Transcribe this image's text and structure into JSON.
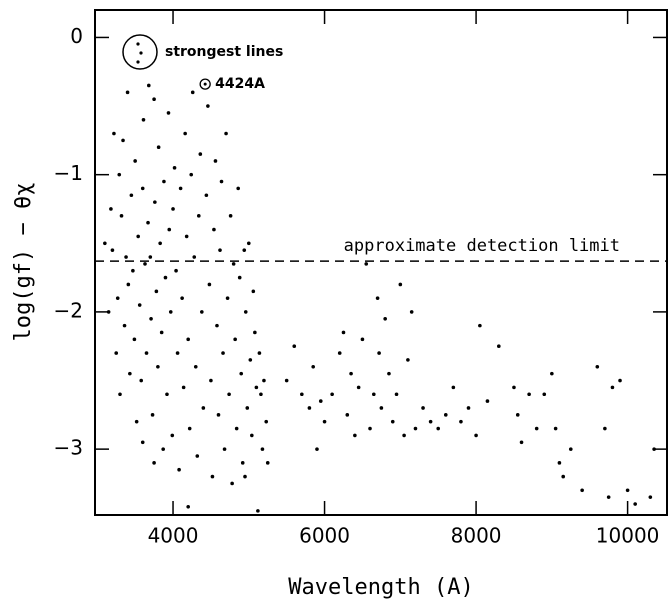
{
  "chart_data": {
    "type": "scatter",
    "xlabel": "Wavelength (A)",
    "ylabel": "log(gf) − θχ",
    "xlim": [
      2970,
      10520
    ],
    "ylim": [
      -3.48,
      0.2
    ],
    "xticks": [
      4000,
      6000,
      8000,
      10000
    ],
    "yticks": [
      0,
      {
        "value": -1,
        "label": "−1"
      },
      {
        "value": -2,
        "label": "−2"
      },
      {
        "value": -3,
        "label": "−3"
      }
    ],
    "reference_line": {
      "value": -1.63,
      "label": "approximate detection limit"
    },
    "legend_text": "strongest lines",
    "highlight": {
      "label": "4424A",
      "x": 4424,
      "y": -0.34
    },
    "series": [
      {
        "color": "#000000",
        "x": [
          3100,
          3150,
          3180,
          3200,
          3220,
          3250,
          3270,
          3290,
          3300,
          3320,
          3340,
          3360,
          3380,
          3400,
          3410,
          3430,
          3450,
          3470,
          3490,
          3500,
          3520,
          3540,
          3560,
          3580,
          3600,
          3610,
          3630,
          3650,
          3670,
          3680,
          3700,
          3710,
          3730,
          3750,
          3760,
          3780,
          3800,
          3810,
          3830,
          3850,
          3870,
          3880,
          3900,
          3920,
          3940,
          3950,
          3970,
          3990,
          4000,
          4020,
          4040,
          4060,
          4080,
          4100,
          4120,
          4140,
          4160,
          4180,
          4200,
          4220,
          4240,
          4260,
          4280,
          4300,
          4320,
          4340,
          4360,
          4380,
          4400,
          4440,
          4460,
          4480,
          4500,
          4520,
          4540,
          4560,
          4580,
          4600,
          4620,
          4640,
          4660,
          4680,
          4700,
          4720,
          4740,
          4760,
          4780,
          4800,
          4820,
          4840,
          4860,
          4880,
          4900,
          4920,
          4940,
          4960,
          4980,
          5000,
          5020,
          5040,
          5060,
          5080,
          5100,
          5120,
          5140,
          5160,
          5180,
          5200,
          5230,
          5250,
          3600,
          3750,
          4200,
          4950,
          5500,
          5600,
          5700,
          5800,
          5850,
          5900,
          5950,
          6000,
          6100,
          6200,
          6250,
          6300,
          6350,
          6400,
          6450,
          6500,
          6550,
          6600,
          6650,
          6700,
          6720,
          6750,
          6800,
          6850,
          6900,
          6950,
          7000,
          7050,
          7100,
          7150,
          7200,
          7300,
          7400,
          7500,
          7600,
          7700,
          7800,
          7900,
          8000,
          8050,
          8150,
          8300,
          8500,
          8550,
          8600,
          8700,
          8800,
          8900,
          9000,
          9050,
          9100,
          9150,
          9250,
          9400,
          9600,
          9700,
          9750,
          9800,
          9900,
          10000,
          10100,
          10300,
          10350
        ],
        "values": [
          -1.5,
          -2.0,
          -1.25,
          -1.55,
          -0.7,
          -2.3,
          -1.9,
          -1.0,
          -2.6,
          -1.3,
          -0.75,
          -2.1,
          -1.6,
          -0.4,
          -1.8,
          -2.45,
          -1.15,
          -1.7,
          -2.2,
          -0.9,
          -2.8,
          -1.45,
          -1.95,
          -2.5,
          -1.1,
          -0.6,
          -1.65,
          -2.3,
          -1.35,
          -0.35,
          -1.6,
          -2.05,
          -2.75,
          -0.45,
          -1.2,
          -1.85,
          -2.4,
          -0.8,
          -1.5,
          -2.15,
          -3.0,
          -1.05,
          -1.75,
          -2.6,
          -0.55,
          -1.4,
          -2.0,
          -2.9,
          -1.25,
          -0.95,
          -1.7,
          -2.3,
          -3.15,
          -1.1,
          -1.9,
          -2.55,
          -0.7,
          -1.45,
          -2.2,
          -2.85,
          -1.0,
          -0.4,
          -1.6,
          -2.4,
          -3.05,
          -1.3,
          -0.85,
          -2.0,
          -2.7,
          -1.15,
          -0.5,
          -1.8,
          -2.5,
          -3.2,
          -1.4,
          -0.9,
          -2.1,
          -2.75,
          -1.55,
          -1.05,
          -2.3,
          -3.0,
          -0.7,
          -1.9,
          -2.6,
          -1.3,
          -3.25,
          -1.65,
          -2.2,
          -2.85,
          -1.1,
          -1.75,
          -2.45,
          -3.1,
          -1.55,
          -2.0,
          -2.7,
          -1.5,
          -2.35,
          -2.9,
          -1.85,
          -2.15,
          -2.55,
          -3.45,
          -2.3,
          -2.6,
          -3.0,
          -2.5,
          -2.8,
          -3.1,
          -2.95,
          -3.1,
          -3.42,
          -3.2,
          -2.5,
          -2.25,
          -2.6,
          -2.7,
          -2.4,
          -3.0,
          -2.65,
          -2.8,
          -2.6,
          -2.3,
          -2.15,
          -2.75,
          -2.45,
          -2.9,
          -2.55,
          -2.2,
          -1.65,
          -2.85,
          -2.6,
          -1.9,
          -2.3,
          -2.7,
          -2.05,
          -2.45,
          -2.8,
          -2.6,
          -1.8,
          -2.9,
          -2.35,
          -2.0,
          -2.85,
          -2.7,
          -2.8,
          -2.85,
          -2.75,
          -2.55,
          -2.8,
          -2.7,
          -2.9,
          -2.1,
          -2.65,
          -2.25,
          -2.55,
          -2.75,
          -2.95,
          -2.6,
          -2.85,
          -2.6,
          -2.45,
          -2.85,
          -3.1,
          -3.2,
          -3.0,
          -3.3,
          -2.4,
          -2.85,
          -3.35,
          -2.55,
          -2.5,
          -3.3,
          -3.4,
          -3.35,
          -3.0
        ]
      }
    ]
  }
}
